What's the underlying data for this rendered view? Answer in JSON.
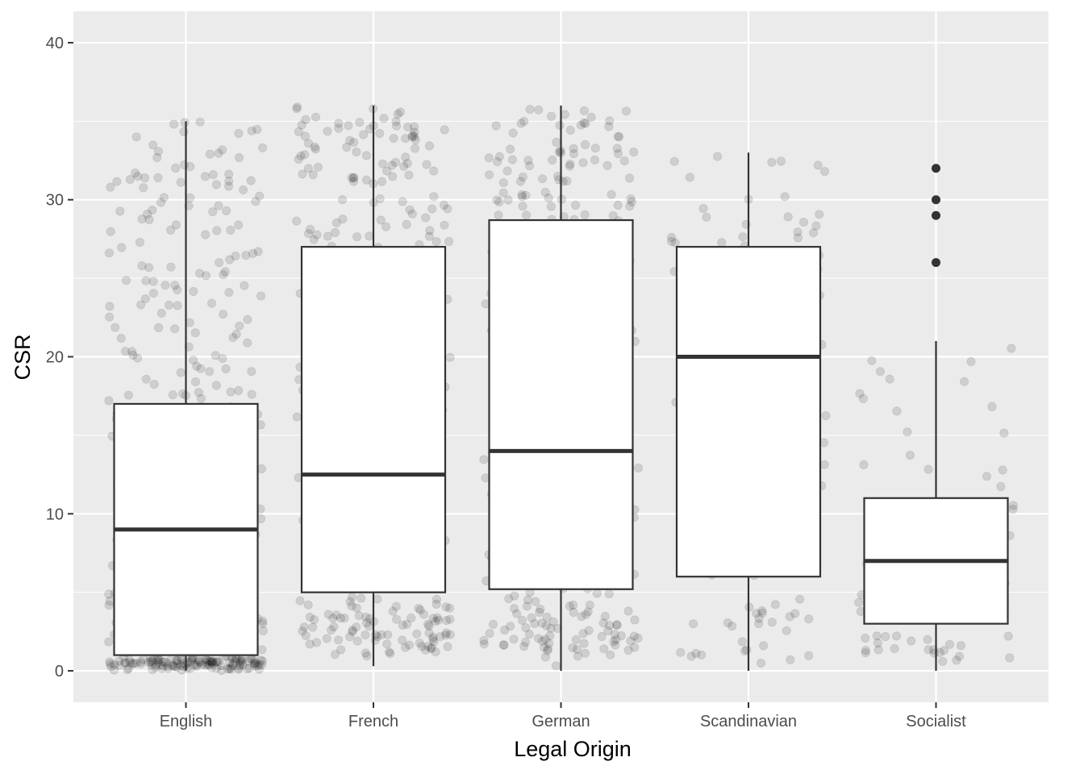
{
  "chart_data": {
    "type": "boxplot",
    "title": "",
    "xlabel": "Legal Origin",
    "ylabel": "CSR",
    "ylim": [
      -2,
      42
    ],
    "y_ticks": [
      0,
      10,
      20,
      30,
      40
    ],
    "grid": true,
    "legend": "none",
    "colors": {
      "panel": "#ebebeb",
      "grid": "#ffffff",
      "box_fill": "#ffffff",
      "box_line": "#333333",
      "points": "#000000"
    },
    "categories": [
      "English",
      "French",
      "German",
      "Scandinavian",
      "Socialist"
    ],
    "boxes": [
      {
        "category": "English",
        "min": 0,
        "q1": 1,
        "median": 9,
        "q3": 17,
        "max": 35,
        "outliers": [],
        "jitter_n": 520
      },
      {
        "category": "French",
        "min": 0.3,
        "q1": 5,
        "median": 12.5,
        "q3": 27,
        "max": 36,
        "outliers": [],
        "jitter_n": 330
      },
      {
        "category": "German",
        "min": 0,
        "q1": 5.2,
        "median": 14,
        "q3": 28.7,
        "max": 36,
        "outliers": [],
        "jitter_n": 330
      },
      {
        "category": "Scandinavian",
        "min": 0,
        "q1": 6,
        "median": 20,
        "q3": 27,
        "max": 33,
        "outliers": [],
        "jitter_n": 95
      },
      {
        "category": "Socialist",
        "min": 0,
        "q1": 3,
        "median": 7,
        "q3": 11,
        "max": 21,
        "outliers": [
          26,
          29,
          30,
          32
        ],
        "jitter_n": 85
      }
    ]
  }
}
